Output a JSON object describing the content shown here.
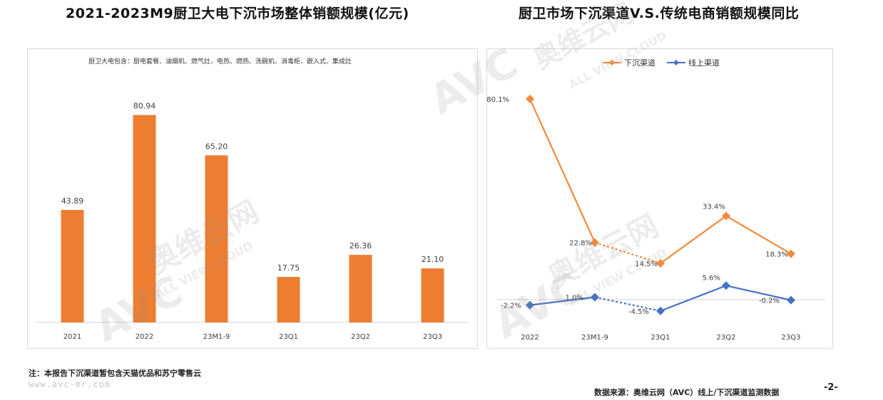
{
  "left": {
    "title": "2021-2023M9厨卫大电下沉市场整体销额规模(亿元)",
    "note": "厨卫大电包含：厨电套餐、油烟机、燃气灶、电热、燃热、洗碗机、消毒柜、嵌入式、集成灶"
  },
  "right": {
    "title": "厨卫市场下沉渠道V.S.传统电商销额规模同比"
  },
  "watermark": {
    "brand": "AVC",
    "cn": "奥维云网",
    "en": "ALL VIEW CLOUD"
  },
  "footer": {
    "footnote": "注：本报告下沉渠道暂包含天猫优品和苏宁零售云",
    "site": "www.avc-mr.com",
    "source": "数据来源：奥维云网（AVC）线上/下沉渠道监测数据",
    "page": "-2-"
  },
  "chart_data": [
    {
      "type": "bar",
      "categories": [
        "2021",
        "2022",
        "23M1-9",
        "23Q1",
        "23Q2",
        "23Q3"
      ],
      "values": [
        43.89,
        80.94,
        65.2,
        17.75,
        26.36,
        21.1
      ],
      "value_labels": [
        "43.89",
        "80.94",
        "65.20",
        "17.75",
        "26.36",
        "21.10"
      ],
      "ylim": [
        0,
        90
      ],
      "color": "#ed7d31",
      "grid": false
    },
    {
      "type": "line",
      "categories": [
        "2022",
        "23M1-9",
        "23Q1",
        "23Q2",
        "23Q3"
      ],
      "ylim": [
        -10,
        85
      ],
      "grid": false,
      "legend": "top",
      "series": [
        {
          "name": "下沉渠道",
          "values": [
            80.1,
            22.8,
            14.5,
            33.4,
            18.3
          ],
          "labels": [
            "80.1%",
            "22.8%",
            "14.5%",
            "33.4%",
            "18.3%"
          ],
          "color": "#f08a3c",
          "dashed_segments": [
            1
          ]
        },
        {
          "name": "线上渠道",
          "values": [
            -2.2,
            1.0,
            -4.5,
            5.6,
            -0.2
          ],
          "labels": [
            "-2.2%",
            "1.0%",
            "-4.5%",
            "5.6%",
            "-0.2%"
          ],
          "color": "#4472c4",
          "dashed_segments": [
            1
          ]
        }
      ]
    }
  ]
}
